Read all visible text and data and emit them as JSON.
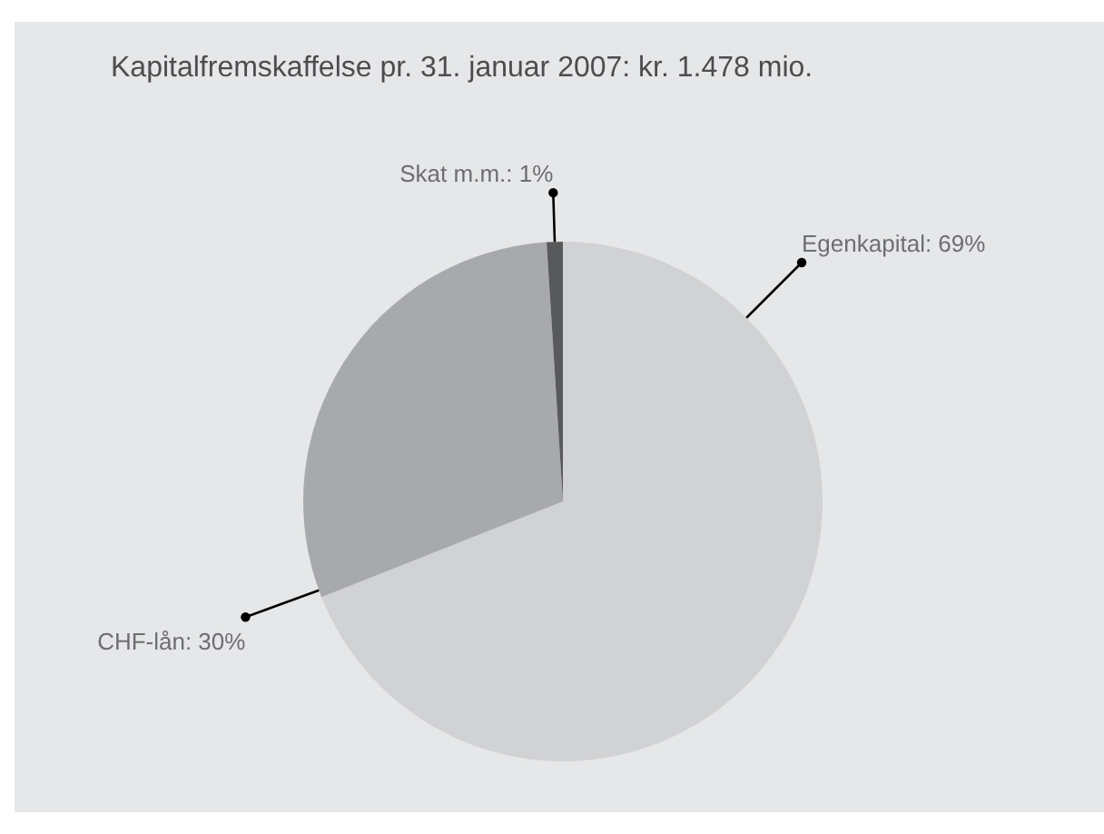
{
  "chart_data": {
    "type": "pie",
    "title": "Kapitalfremskaffelse pr. 31. januar 2007: kr. 1.478 mio.",
    "categories": [
      "Egenkapital",
      "CHF-lån",
      "Skat m.m."
    ],
    "values": [
      69,
      30,
      1
    ],
    "colors": [
      "#d1d2d4",
      "#a7a9ac",
      "#58595b"
    ],
    "value_labels": [
      "69%",
      "30%",
      "1%"
    ]
  }
}
